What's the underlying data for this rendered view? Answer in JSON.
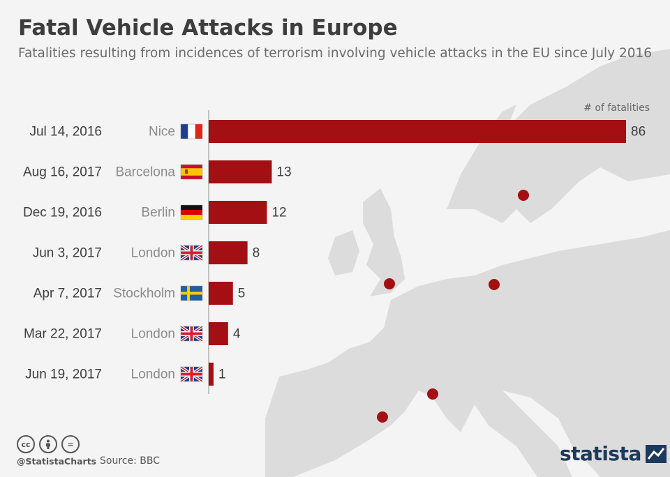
{
  "title": "Fatal Vehicle Attacks in Europe",
  "subtitle": "Fatalities resulting from incidences of terrorism involving vehicle attacks in the EU since July 2016",
  "colors": {
    "bar": "#a30f12",
    "marker": "#a30f12",
    "map": "#dcdcdc",
    "text": "#3d3d3d",
    "label_gray": "#8a8a8a"
  },
  "chart_data": {
    "type": "bar",
    "orientation": "horizontal",
    "axis_label": "# of fatalities",
    "xlim": [
      0,
      86
    ],
    "rows": [
      {
        "date": "Jul 14, 2016",
        "city": "Nice",
        "flag": "france",
        "value": 86
      },
      {
        "date": "Aug 16, 2017",
        "city": "Barcelona",
        "flag": "spain",
        "value": 13
      },
      {
        "date": "Dec 19, 2016",
        "city": "Berlin",
        "flag": "germany",
        "value": 12
      },
      {
        "date": "Jun 3, 2017",
        "city": "London",
        "flag": "uk",
        "value": 8
      },
      {
        "date": "Apr 7, 2017",
        "city": "Stockholm",
        "flag": "sweden",
        "value": 5
      },
      {
        "date": "Mar 22, 2017",
        "city": "London",
        "flag": "uk",
        "value": 4
      },
      {
        "date": "Jun 19, 2017",
        "city": "London",
        "flag": "uk",
        "value": 1
      }
    ],
    "map_markers": [
      "Stockholm",
      "London",
      "Berlin",
      "Nice",
      "Barcelona"
    ]
  },
  "footer": {
    "cc_icons": [
      "cc",
      "by",
      "="
    ],
    "handle": "@StatistaCharts",
    "source": "Source: BBC",
    "logo": "statista"
  }
}
